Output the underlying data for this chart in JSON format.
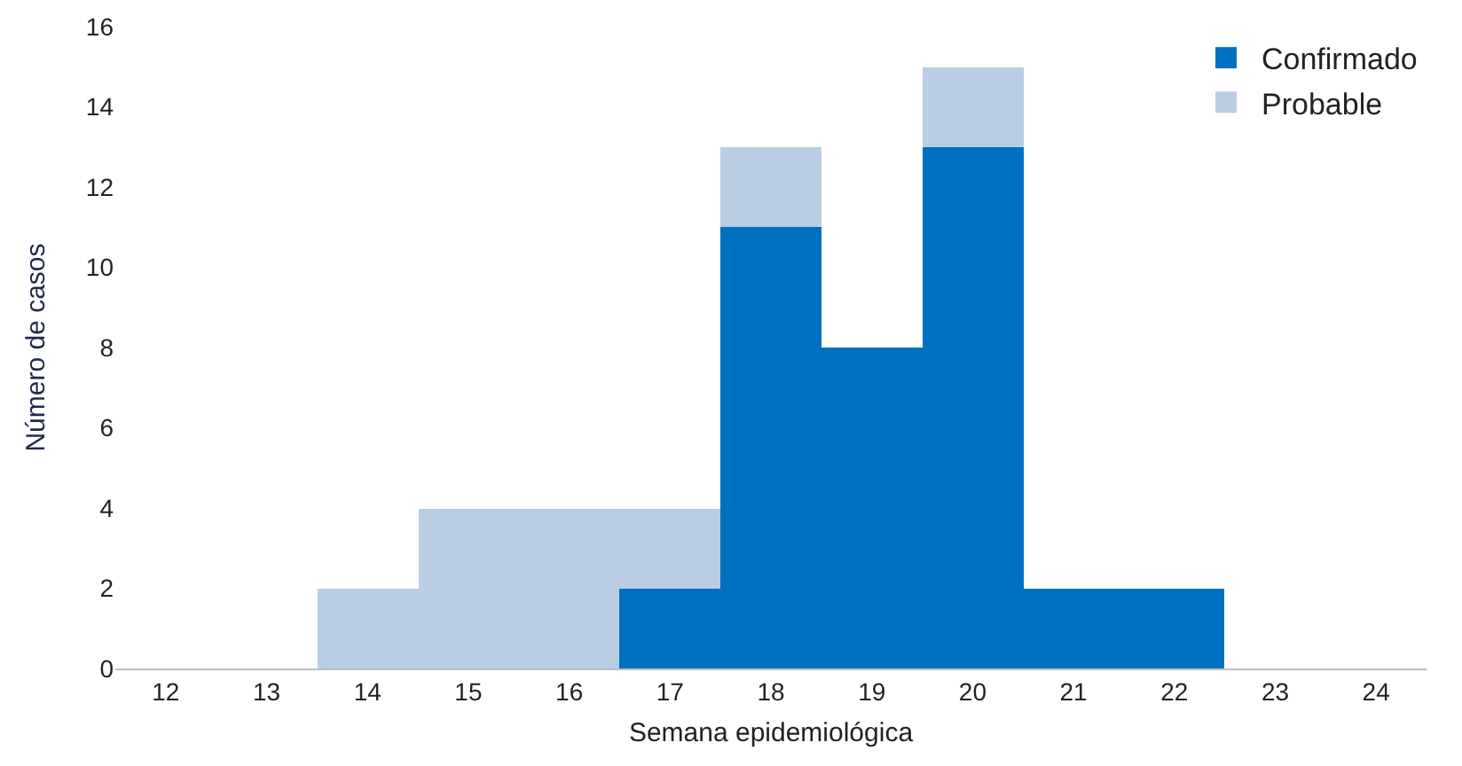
{
  "chart_data": {
    "type": "bar",
    "stacked": true,
    "xlabel": "Semana epidemiológica",
    "ylabel": "Número de casos",
    "categories": [
      "12",
      "13",
      "14",
      "15",
      "16",
      "17",
      "18",
      "19",
      "20",
      "21",
      "22",
      "23",
      "24"
    ],
    "series": [
      {
        "name": "Confirmado",
        "color": "#0070c0",
        "values": [
          0,
          0,
          0,
          0,
          0,
          2,
          11,
          8,
          13,
          2,
          2,
          0,
          0
        ]
      },
      {
        "name": "Probable",
        "color": "#b9cde5",
        "values": [
          0,
          0,
          2,
          4,
          4,
          2,
          2,
          0,
          2,
          0,
          0,
          0,
          0
        ]
      }
    ],
    "ylim": [
      0,
      16
    ],
    "yticks": [
      0,
      2,
      4,
      6,
      8,
      10,
      12,
      14,
      16
    ],
    "grid": false,
    "legend": "top right"
  }
}
